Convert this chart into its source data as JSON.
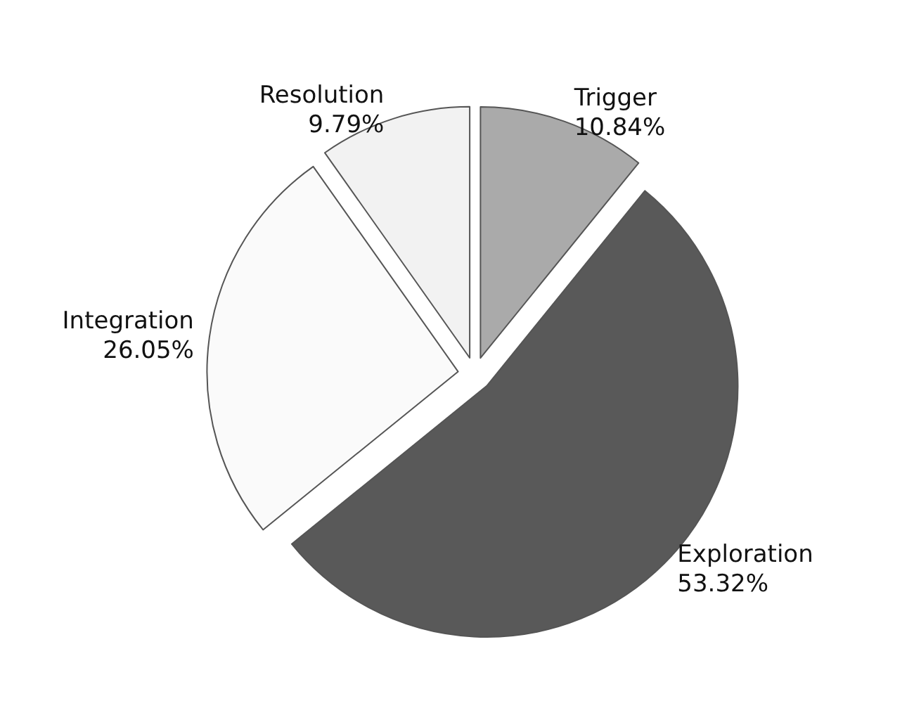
{
  "chart_data": {
    "type": "pie",
    "categories": [
      "Trigger",
      "Exploration",
      "Integration",
      "Resolution"
    ],
    "values": [
      10.84,
      53.32,
      26.05,
      9.79
    ],
    "value_labels": [
      "10.84%",
      "53.32%",
      "26.05%",
      "9.79%"
    ],
    "colors": [
      "#aaaaaa",
      "#595959",
      "#fafafa",
      "#f2f2f2"
    ],
    "legend": false
  }
}
